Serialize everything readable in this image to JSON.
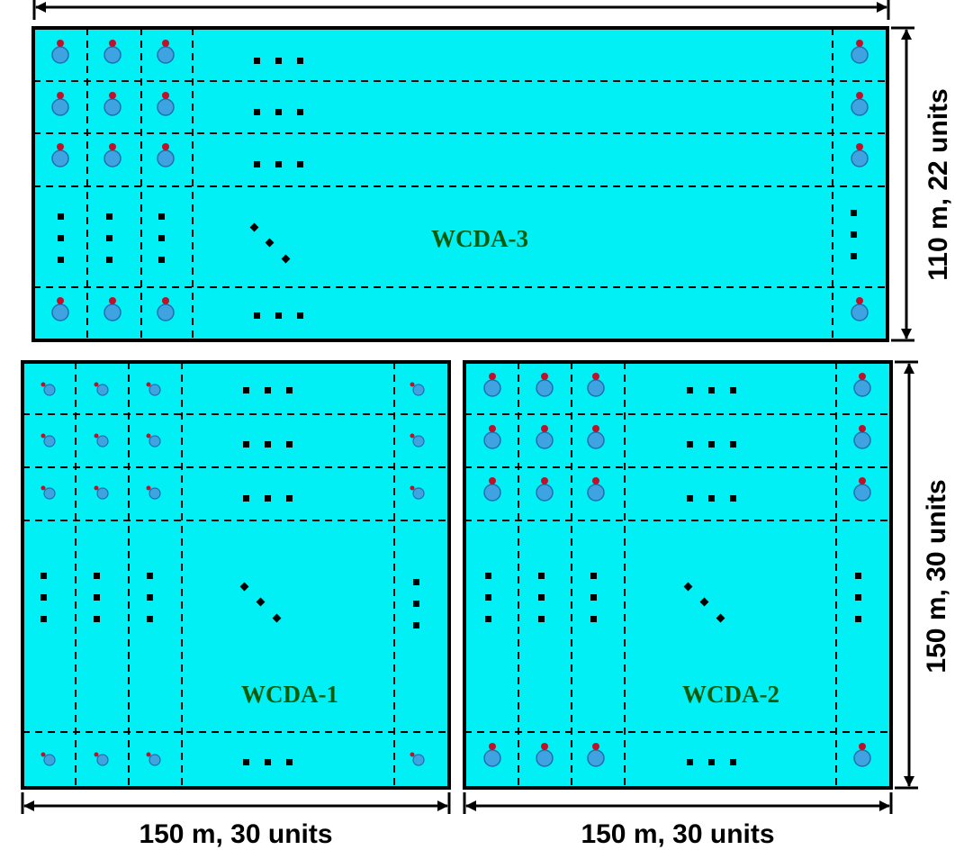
{
  "pools": [
    {
      "id": "wcda3",
      "label": "WCDA-3",
      "dimension_label": "110 m, 22 units",
      "dimension_side": "right"
    },
    {
      "id": "wcda1",
      "label": "WCDA-1",
      "dimension_label": "150 m, 30 units",
      "dimension_side": "bottom"
    },
    {
      "id": "wcda2",
      "label": "WCDA-2",
      "dimension_label": "150 m, 30 units",
      "dimension_side": "bottom"
    },
    {
      "id": "wcda2-height",
      "dimension_label": "150 m, 30 units",
      "dimension_side": "right"
    }
  ],
  "colors": {
    "pool_fill": "#00f0f5",
    "pmt_fill": "#3ea3e0",
    "pmt_small_marker": "#c0102a",
    "label_text": "#0a5c0a"
  },
  "icons": {
    "detector_unit": "pmt-icon",
    "ellipsis": "ellipsis-icon"
  }
}
